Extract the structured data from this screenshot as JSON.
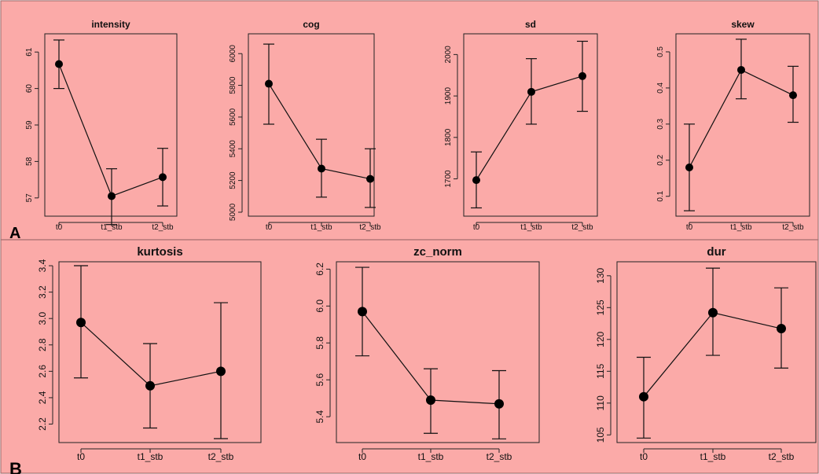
{
  "figure": {
    "row_labels": [
      "A",
      "B"
    ],
    "background_color": "#fbaaa8"
  },
  "chart_data": [
    {
      "type": "line",
      "title": "intensity",
      "categories": [
        "t0",
        "t1_stb",
        "t2_stb"
      ],
      "values": [
        60.67,
        57.05,
        57.57
      ],
      "error_low": [
        60.0,
        56.27,
        56.78
      ],
      "error_high": [
        61.33,
        57.8,
        58.36
      ],
      "ylim": [
        56.5,
        61.5
      ],
      "yticks": [
        "57",
        "58",
        "59",
        "60",
        "61"
      ],
      "ytick_values": [
        57,
        58,
        59,
        60,
        61
      ]
    },
    {
      "type": "line",
      "title": "cog",
      "categories": [
        "t0",
        "t1_stb",
        "t2_stb"
      ],
      "values": [
        5810,
        5275,
        5210
      ],
      "error_low": [
        5555,
        5095,
        5030
      ],
      "error_high": [
        6060,
        5460,
        5400
      ],
      "ylim": [
        4975,
        6125
      ],
      "yticks": [
        "5000",
        "5200",
        "5400",
        "5600",
        "5800",
        "6000"
      ],
      "ytick_values": [
        5000,
        5200,
        5400,
        5600,
        5800,
        6000
      ]
    },
    {
      "type": "line",
      "title": "sd",
      "categories": [
        "t0",
        "t1_stb",
        "t2_stb"
      ],
      "values": [
        1697,
        1910,
        1948
      ],
      "error_low": [
        1630,
        1832,
        1863
      ],
      "error_high": [
        1765,
        1990,
        2032
      ],
      "ylim": [
        1610,
        2050
      ],
      "yticks": [
        "1700",
        "1800",
        "1900",
        "2000"
      ],
      "ytick_values": [
        1700,
        1800,
        1900,
        2000
      ]
    },
    {
      "type": "line",
      "title": "skew",
      "categories": [
        "t0",
        "t1_stb",
        "t2_stb"
      ],
      "values": [
        0.18,
        0.45,
        0.38
      ],
      "error_low": [
        0.06,
        0.37,
        0.305
      ],
      "error_high": [
        0.3,
        0.535,
        0.46
      ],
      "ylim": [
        0.045,
        0.55
      ],
      "yticks": [
        "0.1",
        "0.2",
        "0.3",
        "0.4",
        "0.5"
      ],
      "ytick_values": [
        0.1,
        0.2,
        0.3,
        0.4,
        0.5
      ]
    },
    {
      "type": "line",
      "title": "kurtosis",
      "categories": [
        "t0",
        "t1_stb",
        "t2_stb"
      ],
      "values": [
        2.97,
        2.49,
        2.6
      ],
      "error_low": [
        2.55,
        2.17,
        2.09
      ],
      "error_high": [
        3.4,
        2.81,
        3.12
      ],
      "ylim": [
        2.06,
        3.43
      ],
      "yticks": [
        "2.2",
        "2.4",
        "2.6",
        "2.8",
        "3.0",
        "3.2",
        "3.4"
      ],
      "ytick_values": [
        2.2,
        2.4,
        2.6,
        2.8,
        3.0,
        3.2,
        3.4
      ]
    },
    {
      "type": "line",
      "title": "zc_norm",
      "categories": [
        "t0",
        "t1_stb",
        "t2_stb"
      ],
      "values": [
        5.97,
        5.49,
        5.47
      ],
      "error_low": [
        5.73,
        5.31,
        5.28
      ],
      "error_high": [
        6.21,
        5.66,
        5.65
      ],
      "ylim": [
        5.26,
        6.24
      ],
      "yticks": [
        "5.4",
        "5.6",
        "5.8",
        "6.0",
        "6.2"
      ],
      "ytick_values": [
        5.4,
        5.6,
        5.8,
        6.0,
        6.2
      ]
    },
    {
      "type": "line",
      "title": "dur",
      "categories": [
        "t0",
        "t1_stb",
        "t2_stb"
      ],
      "values": [
        111,
        124.2,
        121.7
      ],
      "error_low": [
        104.5,
        117.5,
        115.5
      ],
      "error_high": [
        117.2,
        131.2,
        128.1
      ],
      "ylim": [
        103.8,
        132.2
      ],
      "yticks": [
        "105",
        "110",
        "115",
        "120",
        "125",
        "130"
      ],
      "ytick_values": [
        105,
        110,
        115,
        120,
        125,
        130
      ]
    }
  ]
}
